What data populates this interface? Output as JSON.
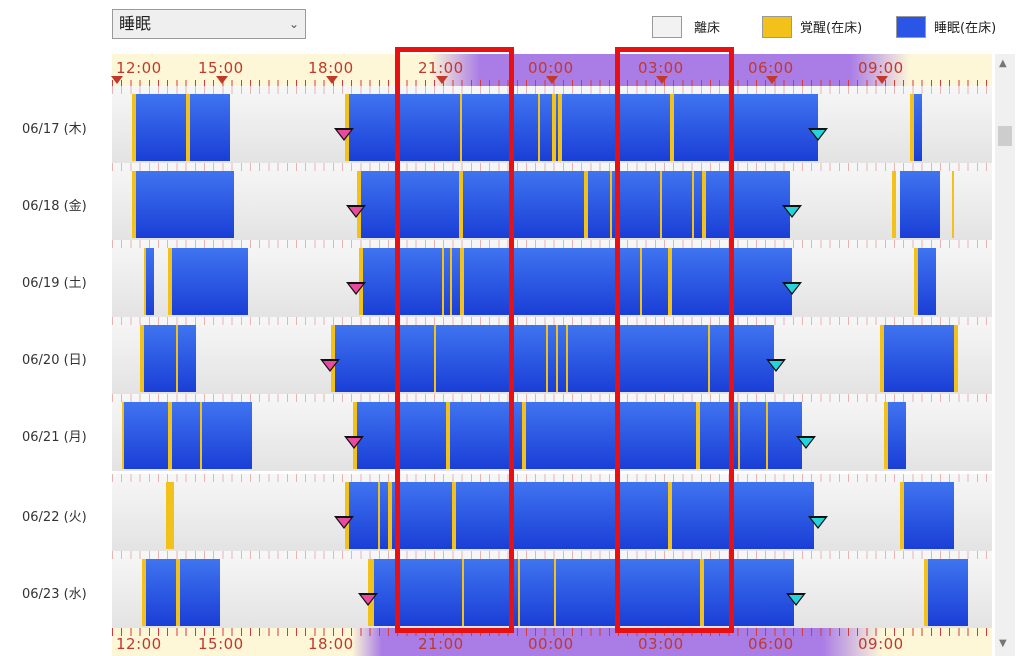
{
  "dropdown": {
    "value": "睡眠"
  },
  "legend": [
    {
      "label": "離床",
      "color": "#f2f2f2"
    },
    {
      "label": "覚醒(在床)",
      "color": "#f2c21a"
    },
    {
      "label": "睡眠(在床)",
      "color": "#2a55e6"
    }
  ],
  "axis": {
    "labels": [
      "12:00",
      "15:00",
      "18:00",
      "21:00",
      "00:00",
      "03:00",
      "06:00",
      "09:00"
    ]
  },
  "days": [
    {
      "label": "06/17 (木)"
    },
    {
      "label": "06/18 (金)"
    },
    {
      "label": "06/19 (土)"
    },
    {
      "label": "06/20 (日)"
    },
    {
      "label": "06/21 (月)"
    },
    {
      "label": "06/22 (火)"
    },
    {
      "label": "06/23 (水)"
    }
  ],
  "colors": {
    "sleep": "#2a55e6",
    "awake": "#f2c21a",
    "out": "#f2f2f2",
    "highlight": "#e81010"
  }
}
